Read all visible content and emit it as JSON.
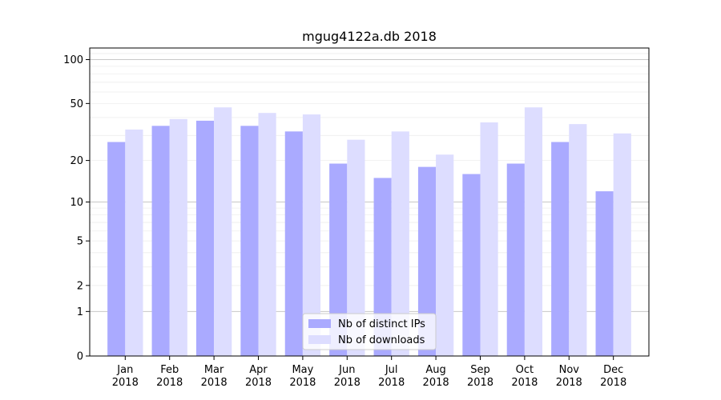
{
  "chart_data": {
    "type": "bar",
    "title": "mgug4122a.db 2018",
    "xlabel": "",
    "ylabel": "",
    "yscale": "log(1+y)",
    "ylim": [
      0,
      120
    ],
    "grid": true,
    "legend_position": "bottom-center",
    "categories": [
      "Jan\n2018",
      "Feb\n2018",
      "Mar\n2018",
      "Apr\n2018",
      "May\n2018",
      "Jun\n2018",
      "Jul\n2018",
      "Aug\n2018",
      "Sep\n2018",
      "Oct\n2018",
      "Nov\n2018",
      "Dec\n2018"
    ],
    "yticks": [
      {
        "value": 0,
        "label": "0"
      },
      {
        "value": 1,
        "label": "1"
      },
      {
        "value": 2,
        "label": "2"
      },
      {
        "value": 5,
        "label": "5"
      },
      {
        "value": 10,
        "label": "10"
      },
      {
        "value": 20,
        "label": "20"
      },
      {
        "value": 50,
        "label": "50"
      },
      {
        "value": 100,
        "label": "100"
      }
    ],
    "series": [
      {
        "name": "Nb of distinct IPs",
        "color": "#aaaaff",
        "values": [
          27,
          35,
          38,
          35,
          32,
          19,
          15,
          18,
          16,
          19,
          27,
          12
        ]
      },
      {
        "name": "Nb of downloads",
        "color": "#ddddff",
        "values": [
          33,
          39,
          47,
          43,
          42,
          28,
          32,
          22,
          37,
          47,
          36,
          31
        ]
      }
    ]
  }
}
